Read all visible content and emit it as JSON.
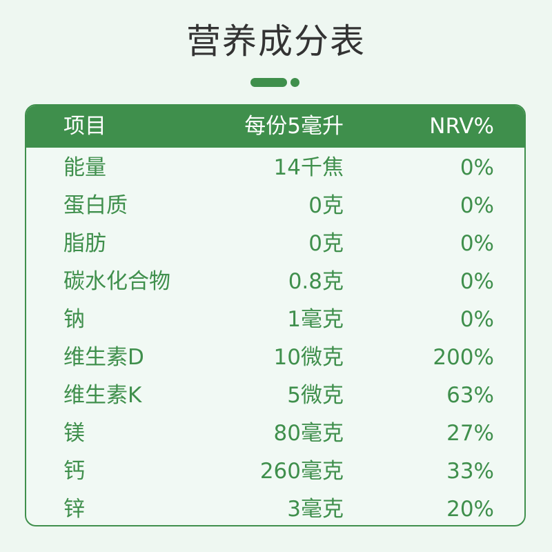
{
  "title": "营养成分表",
  "table": {
    "headers": {
      "item": "项目",
      "amount": "每份5毫升",
      "nrv": "NRV%"
    },
    "rows": [
      {
        "item": "能量",
        "amount": "14千焦",
        "nrv": "0%"
      },
      {
        "item": "蛋白质",
        "amount": "0克",
        "nrv": "0%"
      },
      {
        "item": "脂肪",
        "amount": "0克",
        "nrv": "0%"
      },
      {
        "item": "碳水化合物",
        "amount": "0.8克",
        "nrv": "0%"
      },
      {
        "item": "钠",
        "amount": "1毫克",
        "nrv": "0%"
      },
      {
        "item": "维生素D",
        "amount": "10微克",
        "nrv": "200%"
      },
      {
        "item": "维生素K",
        "amount": "5微克",
        "nrv": "63%"
      },
      {
        "item": "镁",
        "amount": "80毫克",
        "nrv": "27%"
      },
      {
        "item": "钙",
        "amount": "260毫克",
        "nrv": "33%"
      },
      {
        "item": "锌",
        "amount": "3毫克",
        "nrv": "20%"
      }
    ]
  },
  "colors": {
    "accent": "#3f8f4c",
    "background": "#eef7f1",
    "title": "#333333"
  }
}
